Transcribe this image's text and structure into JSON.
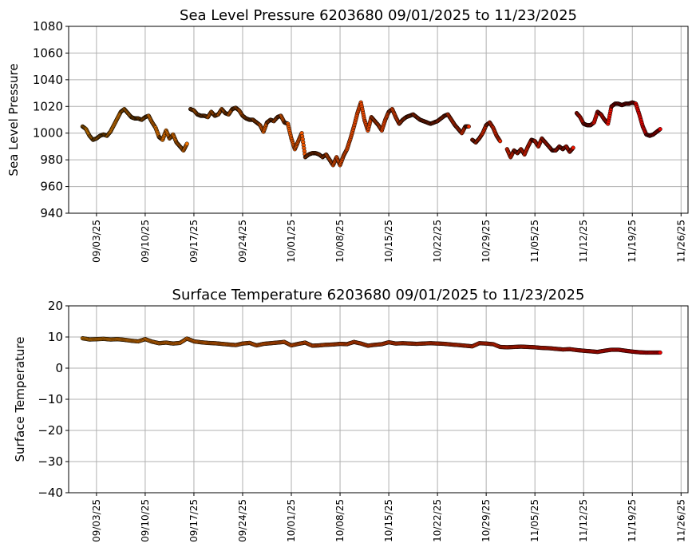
{
  "chart_data": [
    {
      "type": "scatter",
      "title": "Sea Level Pressure 6203680  09/01/2025 to 11/23/2025",
      "ylabel": "Sea Level Pressure",
      "ylim": [
        940,
        1080
      ],
      "yticks": [
        940,
        960,
        980,
        1000,
        1020,
        1040,
        1060,
        1080
      ],
      "xlim": [
        "2025-08-30",
        "2025-11-27"
      ],
      "xticks": [
        "2025-09-03",
        "2025-09-10",
        "2025-09-17",
        "2025-09-24",
        "2025-10-01",
        "2025-10-08",
        "2025-10-15",
        "2025-10-22",
        "2025-10-29",
        "2025-11-05",
        "2025-11-12",
        "2025-11-19",
        "2025-11-26"
      ],
      "xticklabels": [
        "09/03/25",
        "09/10/25",
        "09/17/25",
        "09/24/25",
        "10/01/25",
        "10/08/25",
        "10/15/25",
        "10/22/25",
        "10/29/25",
        "11/05/25",
        "11/12/25",
        "11/19/25",
        "11/26/25"
      ],
      "grid": true,
      "marker_edge_color": "#000000",
      "color_start": "#f08c00",
      "color_end": "#ee0000",
      "segments": [
        [
          [
            "2025-09-01",
            1005
          ],
          [
            "2025-09-01T12",
            1003
          ],
          [
            "2025-09-02",
            998
          ],
          [
            "2025-09-02T12",
            995
          ],
          [
            "2025-09-03",
            996
          ],
          [
            "2025-09-03T12",
            998
          ],
          [
            "2025-09-04",
            999
          ],
          [
            "2025-09-04T12",
            998
          ],
          [
            "2025-09-05",
            1001
          ],
          [
            "2025-09-05T12",
            1006
          ],
          [
            "2025-09-06",
            1011
          ],
          [
            "2025-09-06T12",
            1016
          ],
          [
            "2025-09-07",
            1018
          ],
          [
            "2025-09-07T12",
            1015
          ],
          [
            "2025-09-08",
            1012
          ],
          [
            "2025-09-08T12",
            1011
          ],
          [
            "2025-09-09",
            1011
          ],
          [
            "2025-09-09T12",
            1010
          ],
          [
            "2025-09-10",
            1012
          ],
          [
            "2025-09-10T12",
            1013
          ],
          [
            "2025-09-11",
            1008
          ],
          [
            "2025-09-11T12",
            1004
          ],
          [
            "2025-09-12",
            997
          ],
          [
            "2025-09-12T12",
            995
          ],
          [
            "2025-09-13",
            1002
          ],
          [
            "2025-09-13T12",
            996
          ],
          [
            "2025-09-14",
            999
          ],
          [
            "2025-09-14T12",
            993
          ],
          [
            "2025-09-15",
            990
          ],
          [
            "2025-09-15T12",
            987
          ],
          [
            "2025-09-16",
            992
          ]
        ],
        [
          [
            "2025-09-16T12",
            1018
          ],
          [
            "2025-09-17",
            1017
          ],
          [
            "2025-09-17T12",
            1014
          ],
          [
            "2025-09-18",
            1013
          ],
          [
            "2025-09-18T12",
            1013
          ],
          [
            "2025-09-19",
            1012
          ],
          [
            "2025-09-19T12",
            1016
          ],
          [
            "2025-09-20",
            1013
          ],
          [
            "2025-09-20T12",
            1014
          ],
          [
            "2025-09-21",
            1018
          ],
          [
            "2025-09-21T12",
            1015
          ],
          [
            "2025-09-22",
            1014
          ],
          [
            "2025-09-22T12",
            1018
          ],
          [
            "2025-09-23",
            1019
          ],
          [
            "2025-09-23T12",
            1017
          ],
          [
            "2025-09-24",
            1013
          ],
          [
            "2025-09-24T12",
            1011
          ],
          [
            "2025-09-25",
            1010
          ],
          [
            "2025-09-25T12",
            1010
          ],
          [
            "2025-09-26",
            1008
          ],
          [
            "2025-09-26T12",
            1006
          ],
          [
            "2025-09-27",
            1001
          ],
          [
            "2025-09-27T12",
            1008
          ],
          [
            "2025-09-28",
            1010
          ],
          [
            "2025-09-28T12",
            1009
          ],
          [
            "2025-09-29",
            1012
          ],
          [
            "2025-09-29T12",
            1013
          ],
          [
            "2025-09-30",
            1008
          ],
          [
            "2025-09-30T12",
            1007
          ],
          [
            "2025-10-01",
            996
          ],
          [
            "2025-10-01T12",
            988
          ],
          [
            "2025-10-02",
            994
          ],
          [
            "2025-10-02T12",
            1000
          ],
          [
            "2025-10-03",
            982
          ],
          [
            "2025-10-03T12",
            984
          ],
          [
            "2025-10-04",
            985
          ],
          [
            "2025-10-04T12",
            985
          ],
          [
            "2025-10-05",
            984
          ],
          [
            "2025-10-05T12",
            982
          ],
          [
            "2025-10-06",
            984
          ],
          [
            "2025-10-06T12",
            980
          ],
          [
            "2025-10-07",
            976
          ],
          [
            "2025-10-07T12",
            982
          ],
          [
            "2025-10-08",
            976
          ],
          [
            "2025-10-08T12",
            983
          ],
          [
            "2025-10-09",
            988
          ],
          [
            "2025-10-09T12",
            996
          ],
          [
            "2025-10-10",
            1005
          ],
          [
            "2025-10-10T12",
            1015
          ],
          [
            "2025-10-11",
            1023
          ],
          [
            "2025-10-11T12",
            1010
          ],
          [
            "2025-10-12",
            1002
          ],
          [
            "2025-10-12T12",
            1012
          ],
          [
            "2025-10-13",
            1009
          ],
          [
            "2025-10-13T12",
            1006
          ],
          [
            "2025-10-14",
            1002
          ],
          [
            "2025-10-14T12",
            1010
          ],
          [
            "2025-10-15",
            1016
          ],
          [
            "2025-10-15T12",
            1018
          ],
          [
            "2025-10-16",
            1012
          ],
          [
            "2025-10-16T12",
            1007
          ],
          [
            "2025-10-17",
            1010
          ],
          [
            "2025-10-17T12",
            1012
          ],
          [
            "2025-10-18",
            1013
          ],
          [
            "2025-10-18T12",
            1014
          ],
          [
            "2025-10-19",
            1012
          ],
          [
            "2025-10-19T12",
            1010
          ],
          [
            "2025-10-20",
            1009
          ],
          [
            "2025-10-20T12",
            1008
          ],
          [
            "2025-10-21",
            1007
          ],
          [
            "2025-10-21T12",
            1008
          ],
          [
            "2025-10-22",
            1009
          ],
          [
            "2025-10-22T12",
            1011
          ],
          [
            "2025-10-23",
            1013
          ],
          [
            "2025-10-23T12",
            1014
          ],
          [
            "2025-10-24",
            1010
          ],
          [
            "2025-10-24T12",
            1006
          ],
          [
            "2025-10-25",
            1003
          ],
          [
            "2025-10-25T12",
            1000
          ],
          [
            "2025-10-26",
            1005
          ],
          [
            "2025-10-26T12",
            1005
          ]
        ],
        [
          [
            "2025-10-27",
            995
          ],
          [
            "2025-10-27T12",
            993
          ],
          [
            "2025-10-28",
            996
          ],
          [
            "2025-10-28T12",
            1000
          ],
          [
            "2025-10-29",
            1006
          ],
          [
            "2025-10-29T12",
            1008
          ],
          [
            "2025-10-30",
            1004
          ],
          [
            "2025-10-30T12",
            998
          ],
          [
            "2025-10-31",
            994
          ]
        ],
        [
          [
            "2025-11-01",
            988
          ],
          [
            "2025-11-01T12",
            982
          ],
          [
            "2025-11-02",
            987
          ],
          [
            "2025-11-02T12",
            985
          ],
          [
            "2025-11-03",
            988
          ],
          [
            "2025-11-03T12",
            984
          ],
          [
            "2025-11-04",
            990
          ],
          [
            "2025-11-04T12",
            995
          ],
          [
            "2025-11-05",
            994
          ],
          [
            "2025-11-05T12",
            990
          ],
          [
            "2025-11-06",
            996
          ],
          [
            "2025-11-06T12",
            993
          ],
          [
            "2025-11-07",
            990
          ],
          [
            "2025-11-07T12",
            987
          ],
          [
            "2025-11-08",
            987
          ],
          [
            "2025-11-08T12",
            990
          ],
          [
            "2025-11-09",
            988
          ],
          [
            "2025-11-09T12",
            990
          ],
          [
            "2025-11-10",
            986
          ],
          [
            "2025-11-10T12",
            989
          ]
        ],
        [
          [
            "2025-11-11",
            1015
          ],
          [
            "2025-11-11T12",
            1012
          ],
          [
            "2025-11-12",
            1007
          ],
          [
            "2025-11-12T12",
            1006
          ],
          [
            "2025-11-13",
            1006
          ],
          [
            "2025-11-13T12",
            1008
          ],
          [
            "2025-11-14",
            1016
          ],
          [
            "2025-11-14T12",
            1014
          ],
          [
            "2025-11-15",
            1010
          ],
          [
            "2025-11-15T12",
            1007
          ],
          [
            "2025-11-16",
            1020
          ],
          [
            "2025-11-16T12",
            1022
          ],
          [
            "2025-11-17",
            1022
          ],
          [
            "2025-11-17T12",
            1021
          ],
          [
            "2025-11-18",
            1022
          ],
          [
            "2025-11-18T12",
            1022
          ],
          [
            "2025-11-19",
            1023
          ],
          [
            "2025-11-19T12",
            1022
          ],
          [
            "2025-11-20",
            1014
          ],
          [
            "2025-11-20T12",
            1005
          ],
          [
            "2025-11-21",
            999
          ],
          [
            "2025-11-21T12",
            998
          ],
          [
            "2025-11-22",
            999
          ],
          [
            "2025-11-22T12",
            1001
          ],
          [
            "2025-11-23",
            1003
          ]
        ]
      ]
    },
    {
      "type": "scatter",
      "title": "Surface Temperature 6203680  09/01/2025 to 11/23/2025",
      "ylabel": "Surface Temperature",
      "ylim": [
        -40,
        20
      ],
      "yticks": [
        -40,
        -30,
        -20,
        -10,
        0,
        10,
        20
      ],
      "yticklabels": [
        "−40",
        "−30",
        "−20",
        "−10",
        "0",
        "10",
        "20"
      ],
      "xlim": [
        "2025-08-30",
        "2025-11-27"
      ],
      "xticks": [
        "2025-09-03",
        "2025-09-10",
        "2025-09-17",
        "2025-09-24",
        "2025-10-01",
        "2025-10-08",
        "2025-10-15",
        "2025-10-22",
        "2025-10-29",
        "2025-11-05",
        "2025-11-12",
        "2025-11-19",
        "2025-11-26"
      ],
      "xticklabels": [
        "09/03/25",
        "09/10/25",
        "09/17/25",
        "09/24/25",
        "10/01/25",
        "10/08/25",
        "10/15/25",
        "10/22/25",
        "10/29/25",
        "11/05/25",
        "11/12/25",
        "11/19/25",
        "11/26/25"
      ],
      "grid": true,
      "marker_edge_color": "#000000",
      "color_start": "#f08c00",
      "color_end": "#ee0000",
      "segments": [
        [
          [
            "2025-09-01",
            9.6
          ],
          [
            "2025-09-02",
            9.2
          ],
          [
            "2025-09-03",
            9.3
          ],
          [
            "2025-09-04",
            9.4
          ],
          [
            "2025-09-05",
            9.2
          ],
          [
            "2025-09-06",
            9.3
          ],
          [
            "2025-09-07",
            9.1
          ],
          [
            "2025-09-08",
            8.8
          ],
          [
            "2025-09-09",
            8.6
          ],
          [
            "2025-09-10",
            9.3
          ],
          [
            "2025-09-11",
            8.5
          ],
          [
            "2025-09-12",
            8.0
          ],
          [
            "2025-09-13",
            8.2
          ],
          [
            "2025-09-14",
            7.9
          ],
          [
            "2025-09-15",
            8.1
          ],
          [
            "2025-09-16",
            9.5
          ],
          [
            "2025-09-17",
            8.6
          ],
          [
            "2025-09-18",
            8.3
          ],
          [
            "2025-09-19",
            8.1
          ],
          [
            "2025-09-20",
            8.0
          ],
          [
            "2025-09-21",
            7.8
          ],
          [
            "2025-09-22",
            7.6
          ],
          [
            "2025-09-23",
            7.4
          ],
          [
            "2025-09-24",
            7.9
          ],
          [
            "2025-09-25",
            8.1
          ],
          [
            "2025-09-26",
            7.3
          ],
          [
            "2025-09-27",
            7.8
          ],
          [
            "2025-09-28",
            8.0
          ],
          [
            "2025-09-29",
            8.2
          ],
          [
            "2025-09-30",
            8.4
          ],
          [
            "2025-10-01",
            7.3
          ],
          [
            "2025-10-02",
            7.8
          ],
          [
            "2025-10-03",
            8.2
          ],
          [
            "2025-10-04",
            7.2
          ],
          [
            "2025-10-05",
            7.3
          ],
          [
            "2025-10-06",
            7.5
          ],
          [
            "2025-10-07",
            7.6
          ],
          [
            "2025-10-08",
            7.8
          ],
          [
            "2025-10-09",
            7.7
          ],
          [
            "2025-10-10",
            8.4
          ],
          [
            "2025-10-11",
            7.9
          ],
          [
            "2025-10-12",
            7.2
          ],
          [
            "2025-10-13",
            7.5
          ],
          [
            "2025-10-14",
            7.7
          ],
          [
            "2025-10-15",
            8.3
          ],
          [
            "2025-10-16",
            7.9
          ],
          [
            "2025-10-17",
            8.0
          ],
          [
            "2025-10-18",
            7.9
          ],
          [
            "2025-10-19",
            7.8
          ],
          [
            "2025-10-20",
            7.9
          ],
          [
            "2025-10-21",
            8.0
          ],
          [
            "2025-10-22",
            7.9
          ],
          [
            "2025-10-23",
            7.8
          ],
          [
            "2025-10-24",
            7.6
          ],
          [
            "2025-10-25",
            7.4
          ],
          [
            "2025-10-26",
            7.2
          ],
          [
            "2025-10-27",
            7.0
          ],
          [
            "2025-10-28",
            8.0
          ],
          [
            "2025-10-29",
            7.9
          ],
          [
            "2025-10-30",
            7.7
          ],
          [
            "2025-10-31",
            6.8
          ],
          [
            "2025-11-01",
            6.7
          ],
          [
            "2025-11-02",
            6.8
          ],
          [
            "2025-11-03",
            6.9
          ],
          [
            "2025-11-04",
            6.8
          ],
          [
            "2025-11-05",
            6.7
          ],
          [
            "2025-11-06",
            6.5
          ],
          [
            "2025-11-07",
            6.4
          ],
          [
            "2025-11-08",
            6.2
          ],
          [
            "2025-11-09",
            6.0
          ],
          [
            "2025-11-10",
            6.1
          ],
          [
            "2025-11-11",
            5.8
          ],
          [
            "2025-11-12",
            5.6
          ],
          [
            "2025-11-13",
            5.4
          ],
          [
            "2025-11-14",
            5.2
          ],
          [
            "2025-11-15",
            5.6
          ],
          [
            "2025-11-16",
            5.9
          ],
          [
            "2025-11-17",
            5.9
          ],
          [
            "2025-11-18",
            5.6
          ],
          [
            "2025-11-19",
            5.3
          ],
          [
            "2025-11-20",
            5.1
          ],
          [
            "2025-11-21",
            5.0
          ],
          [
            "2025-11-22",
            5.0
          ],
          [
            "2025-11-23",
            5.0
          ]
        ]
      ]
    }
  ]
}
